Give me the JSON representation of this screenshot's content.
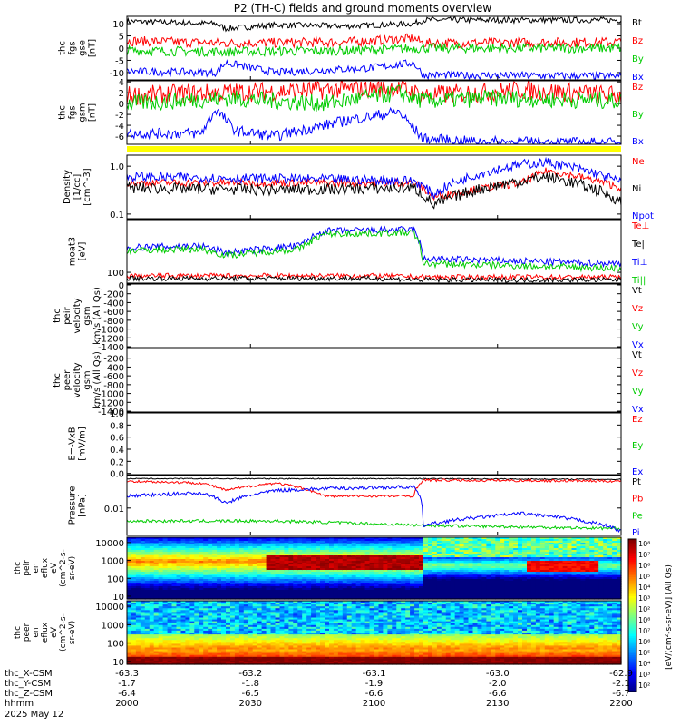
{
  "title": "P2 (TH-C) fields and ground moments overview",
  "colors": {
    "black": "#000000",
    "red": "#ff0000",
    "green": "#00cc00",
    "blue": "#0000ff",
    "yellow": "#ffff00",
    "white": "#ffffff"
  },
  "chart_data": [
    {
      "id": "fgs_gse",
      "type": "line",
      "ylabel": [
        "thc",
        "fgs",
        "gse",
        "[nT]"
      ],
      "ylim": [
        -13,
        13
      ],
      "ticks": [
        10,
        5,
        0,
        -5,
        -10
      ],
      "series": [
        {
          "name": "Bt",
          "color": "red",
          "shape": [
            [
              0,
              11
            ],
            [
              0.18,
              10
            ],
            [
              0.2,
              8
            ],
            [
              0.3,
              9.5
            ],
            [
              0.45,
              9
            ],
            [
              0.58,
              10
            ],
            [
              0.6,
              11.5
            ],
            [
              1,
              11.5
            ]
          ],
          "noise": 0.3,
          "colorKey": "black"
        },
        {
          "name": "Bz",
          "colorKey": "red",
          "shape": [
            [
              0,
              3
            ],
            [
              0.2,
              2
            ],
            [
              0.45,
              2.5
            ],
            [
              0.58,
              4
            ],
            [
              0.6,
              2
            ],
            [
              1,
              2.5
            ]
          ],
          "noise": 0.5
        },
        {
          "name": "By",
          "colorKey": "green",
          "shape": [
            [
              0,
              -1
            ],
            [
              0.2,
              -1.5
            ],
            [
              0.45,
              -1
            ],
            [
              0.6,
              0
            ],
            [
              1,
              0
            ]
          ],
          "noise": 0.5
        },
        {
          "name": "Bx",
          "colorKey": "blue",
          "shape": [
            [
              0,
              -9.5
            ],
            [
              0.18,
              -10
            ],
            [
              0.2,
              -6
            ],
            [
              0.3,
              -10
            ],
            [
              0.5,
              -8
            ],
            [
              0.58,
              -6
            ],
            [
              0.6,
              -11
            ],
            [
              1,
              -11.5
            ]
          ],
          "noise": 0.4
        }
      ]
    },
    {
      "id": "fgs_gsm",
      "type": "line",
      "ylabel": [
        "thc",
        "fgs",
        "gsm",
        "[nT]"
      ],
      "ylim": [
        -7.5,
        4.2
      ],
      "ticks": [
        4,
        2,
        0,
        -2,
        -4,
        -6
      ],
      "series": [
        {
          "name": "Bz",
          "colorKey": "red",
          "shape": [
            [
              0,
              1.5
            ],
            [
              0.2,
              2
            ],
            [
              0.4,
              2.5
            ],
            [
              0.55,
              3
            ],
            [
              0.6,
              1.5
            ],
            [
              0.8,
              2.5
            ],
            [
              1,
              1.5
            ]
          ],
          "noise": 0.45
        },
        {
          "name": "By",
          "colorKey": "green",
          "shape": [
            [
              0,
              0
            ],
            [
              0.2,
              1
            ],
            [
              0.4,
              0
            ],
            [
              0.55,
              2
            ],
            [
              0.6,
              0.5
            ],
            [
              0.75,
              1
            ],
            [
              1,
              0.5
            ]
          ],
          "noise": 0.4
        },
        {
          "name": "Bx",
          "colorKey": "blue",
          "shape": [
            [
              0,
              -5.5
            ],
            [
              0.15,
              -5.5
            ],
            [
              0.18,
              -1
            ],
            [
              0.22,
              -5
            ],
            [
              0.3,
              -6
            ],
            [
              0.45,
              -3
            ],
            [
              0.55,
              -1.5
            ],
            [
              0.6,
              -6.5
            ],
            [
              0.7,
              -7
            ],
            [
              1,
              -7.3
            ]
          ],
          "noise": 0.25
        }
      ]
    },
    {
      "id": "density",
      "type": "line",
      "ylog": true,
      "ylabel": [
        "Density",
        "[1/cc]",
        "[cm^-3]"
      ],
      "ylim": [
        0.08,
        1.7
      ],
      "ticks": [
        1,
        0.1
      ],
      "tickLabels": [
        "1.0",
        "0.1"
      ],
      "series": [
        {
          "name": "Ne",
          "colorKey": "red",
          "shape": [
            [
              0,
              0.45
            ],
            [
              0.3,
              0.45
            ],
            [
              0.58,
              0.45
            ],
            [
              0.62,
              0.22
            ],
            [
              0.8,
              0.45
            ],
            [
              0.85,
              0.8
            ],
            [
              1,
              0.35
            ]
          ],
          "noise": 0.08
        },
        {
          "name": "Ni",
          "colorKey": "black",
          "shape": [
            [
              0,
              0.35
            ],
            [
              0.3,
              0.32
            ],
            [
              0.58,
              0.35
            ],
            [
              0.62,
              0.15
            ],
            [
              0.8,
              0.5
            ],
            [
              0.85,
              0.6
            ],
            [
              1,
              0.18
            ]
          ],
          "noise": 0.12
        },
        {
          "name": "Npot",
          "colorKey": "blue",
          "shape": [
            [
              0,
              0.6
            ],
            [
              0.3,
              0.55
            ],
            [
              0.58,
              0.5
            ],
            [
              0.62,
              0.25
            ],
            [
              0.8,
              1.1
            ],
            [
              0.85,
              1.2
            ],
            [
              1,
              0.45
            ]
          ],
          "noise": 0.1
        }
      ]
    },
    {
      "id": "temp",
      "type": "line",
      "ylog": true,
      "ylabel": [
        "moat3",
        "[eV]"
      ],
      "ylim": [
        60,
        1200
      ],
      "ticks": [
        100
      ],
      "tickLabels": [
        "100"
      ],
      "series": [
        {
          "name": "Te⊥",
          "colorKey": "red",
          "shape": [
            [
              0,
              85
            ],
            [
              0.5,
              85
            ],
            [
              0.6,
              80
            ],
            [
              1,
              80
            ]
          ],
          "noise": 0.05
        },
        {
          "name": "Te||",
          "colorKey": "black",
          "shape": [
            [
              0,
              75
            ],
            [
              0.5,
              75
            ],
            [
              0.6,
              70
            ],
            [
              1,
              70
            ]
          ],
          "noise": 0.05
        },
        {
          "name": "Ti⊥",
          "colorKey": "blue",
          "shape": [
            [
              0,
              320
            ],
            [
              0.15,
              350
            ],
            [
              0.2,
              250
            ],
            [
              0.35,
              350
            ],
            [
              0.4,
              700
            ],
            [
              0.58,
              750
            ],
            [
              0.6,
              190
            ],
            [
              1,
              150
            ]
          ],
          "noise": 0.07
        },
        {
          "name": "Ti||",
          "colorKey": "green",
          "shape": [
            [
              0,
              280
            ],
            [
              0.15,
              300
            ],
            [
              0.2,
              220
            ],
            [
              0.35,
              300
            ],
            [
              0.4,
              600
            ],
            [
              0.58,
              650
            ],
            [
              0.6,
              150
            ],
            [
              1,
              120
            ]
          ],
          "noise": 0.07
        }
      ]
    },
    {
      "id": "peir_vel",
      "type": "empty",
      "ylabel": [
        "thc",
        "peir",
        "velocity",
        "gsm",
        "km/s (All Qs)"
      ],
      "ylim": [
        -1420,
        20
      ],
      "ticks": [
        0,
        -200,
        -400,
        -600,
        -800,
        -1000,
        -1200,
        -1400
      ],
      "tickLabels": [
        "0",
        "-200",
        "-400",
        "-600",
        "-800",
        "-1000",
        "-1200",
        "-1400"
      ],
      "series": [
        {
          "name": "Vt",
          "colorKey": "black"
        },
        {
          "name": "Vz",
          "colorKey": "red"
        },
        {
          "name": "Vy",
          "colorKey": "green"
        },
        {
          "name": "Vx",
          "colorKey": "blue"
        }
      ]
    },
    {
      "id": "peer_vel",
      "type": "empty",
      "ylabel": [
        "thc",
        "peer",
        "velocity",
        "gsm",
        "km/s (All Qs)"
      ],
      "ylim": [
        -1420,
        20
      ],
      "ticks": [
        -200,
        -400,
        -600,
        -800,
        -1000,
        -1200,
        -1400
      ],
      "tickLabels": [
        "-200",
        "-400",
        "-600",
        "-800",
        "-1000",
        "-1200",
        "-1400"
      ],
      "series": [
        {
          "name": "Vt",
          "colorKey": "black"
        },
        {
          "name": "Vz",
          "colorKey": "red"
        },
        {
          "name": "Vy",
          "colorKey": "green"
        },
        {
          "name": "Vx",
          "colorKey": "blue"
        }
      ]
    },
    {
      "id": "efield",
      "type": "empty",
      "ylabel": [
        "E=-VxB",
        "[mV/m]"
      ],
      "ylim": [
        -0.02,
        1.0
      ],
      "ticks": [
        1.0,
        0.8,
        0.6,
        0.4,
        0.2,
        0.0
      ],
      "tickLabels": [
        "1.0",
        "0.8",
        "0.6",
        "0.4",
        "0.2",
        "0.0"
      ],
      "series": [
        {
          "name": "Ez",
          "colorKey": "red"
        },
        {
          "name": "Ey",
          "colorKey": "green"
        },
        {
          "name": "Ex",
          "colorKey": "blue"
        }
      ]
    },
    {
      "id": "pressure",
      "type": "line",
      "ylog": true,
      "ylabel": [
        "Pressure",
        "[nPa]"
      ],
      "ylim": [
        0.0008,
        0.2
      ],
      "ticks": [
        0.01
      ],
      "tickLabels": [
        "0.01"
      ],
      "series": [
        {
          "name": "Pt",
          "colorKey": "black",
          "shape": [
            [
              0,
              0.15
            ],
            [
              0.6,
              0.15
            ],
            [
              1,
              0.14
            ]
          ],
          "noise": 0.02
        },
        {
          "name": "Pb",
          "colorKey": "red",
          "shape": [
            [
              0,
              0.12
            ],
            [
              0.15,
              0.1
            ],
            [
              0.2,
              0.05
            ],
            [
              0.3,
              0.1
            ],
            [
              0.4,
              0.03
            ],
            [
              0.58,
              0.03
            ],
            [
              0.6,
              0.13
            ],
            [
              1,
              0.12
            ]
          ],
          "noise": 0.05
        },
        {
          "name": "Pe",
          "colorKey": "green",
          "shape": [
            [
              0,
              0.003
            ],
            [
              0.2,
              0.003
            ],
            [
              0.3,
              0.003
            ],
            [
              0.6,
              0.002
            ],
            [
              1,
              0.0015
            ]
          ],
          "noise": 0.06
        },
        {
          "name": "Pi",
          "colorKey": "blue",
          "shape": [
            [
              0,
              0.03
            ],
            [
              0.15,
              0.04
            ],
            [
              0.2,
              0.015
            ],
            [
              0.3,
              0.05
            ],
            [
              0.4,
              0.06
            ],
            [
              0.58,
              0.07
            ],
            [
              0.6,
              0.002
            ],
            [
              0.8,
              0.006
            ],
            [
              1,
              0.0012
            ]
          ],
          "noise": 0.07
        }
      ]
    }
  ],
  "spectra": [
    {
      "ylabel": [
        "thc",
        "peir",
        "en",
        "eflux",
        "eV",
        "(cm^2-s-",
        "sr-eV)"
      ],
      "ticks": [
        "10000",
        "1000",
        "100",
        "10"
      ]
    },
    {
      "ylabel": [
        "thc",
        "peer",
        "en",
        "eflux",
        "eV",
        "(cm^2-s-",
        "sr-eV)"
      ],
      "ticks": [
        "10000",
        "1000",
        "100",
        "10"
      ]
    }
  ],
  "colorbar": {
    "labels": [
      "10⁸",
      "10⁷",
      "10⁶",
      "10⁵",
      "10⁴",
      "10³",
      "10²",
      "10⁸",
      "10⁷",
      "10⁶",
      "10⁵",
      "10⁴",
      "10³",
      "10²"
    ],
    "unit": "[eV/(cm²-s-sr-eV)] (All Qs)"
  },
  "right_labels": {
    "fgs_gse": [
      "Bt",
      "Bz",
      "By",
      "Bx"
    ],
    "fgs_gsm": [
      "Bz",
      "By",
      "Bx"
    ],
    "density": [
      "Ne",
      "Ni",
      "Npot"
    ],
    "temp": [
      "Te⊥",
      "Te||",
      "Ti⊥",
      "Ti||"
    ],
    "peir_vel": [
      "Vt",
      "Vz",
      "Vy",
      "Vx"
    ],
    "peer_vel": [
      "Vt",
      "Vz",
      "Vy",
      "Vx"
    ],
    "efield": [
      "Ez",
      "Ey",
      "Ex"
    ],
    "pressure": [
      "Pt",
      "Pb",
      "Pe",
      "Pi"
    ]
  },
  "xaxis": {
    "rows": [
      {
        "label": "thc_X-CSM",
        "values": [
          "-63.3",
          "-63.2",
          "-63.1",
          "-63.0",
          "-62.9"
        ]
      },
      {
        "label": "thc_Y-CSM",
        "values": [
          "-1.7",
          "-1.8",
          "-1.9",
          "-2.0",
          "-2.1"
        ]
      },
      {
        "label": "thc_Z-CSM",
        "values": [
          "-6.4",
          "-6.5",
          "-6.6",
          "-6.6",
          "-6.7"
        ]
      },
      {
        "label": "hhmm",
        "values": [
          "2000",
          "2030",
          "2100",
          "2130",
          "2200"
        ]
      }
    ],
    "date": "2025 May 12"
  }
}
